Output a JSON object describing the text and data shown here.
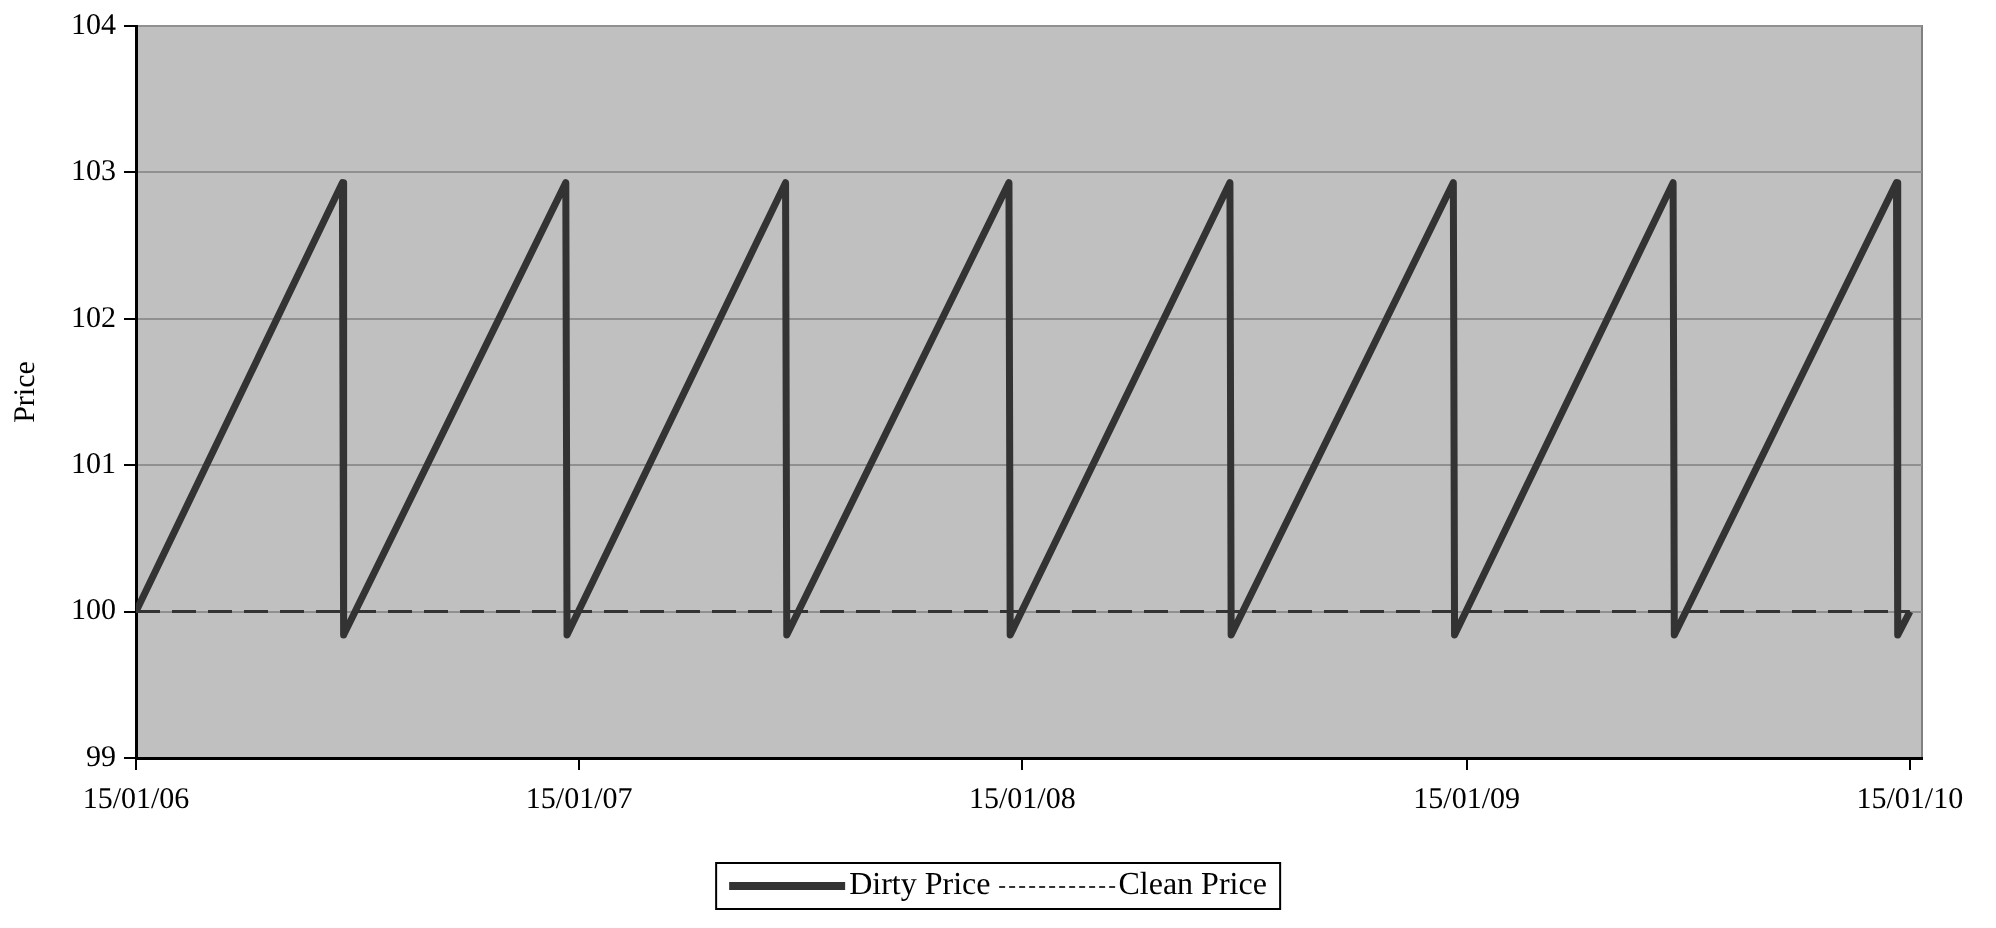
{
  "chart_data": {
    "type": "line",
    "ylabel": "Price",
    "xlim": [
      "2006-01-15",
      "2010-01-25"
    ],
    "xticks": [
      {
        "value": "2006-01-15",
        "label": "15/01/06"
      },
      {
        "value": "2007-01-15",
        "label": "15/01/07"
      },
      {
        "value": "2008-01-15",
        "label": "15/01/08"
      },
      {
        "value": "2009-01-15",
        "label": "15/01/09"
      },
      {
        "value": "2010-01-15",
        "label": "15/01/10"
      }
    ],
    "ylim": [
      99,
      104
    ],
    "yticks": [
      99,
      100,
      101,
      102,
      103,
      104
    ],
    "grid": "y",
    "legend": "bottom",
    "marker": "none",
    "series": [
      {
        "name": "Dirty Price",
        "color": "#333333",
        "line_style": "solid",
        "x": [
          "2006-01-15",
          "2006-07-04",
          "2006-07-05",
          "2007-01-04",
          "2007-01-05",
          "2007-07-04",
          "2007-07-05",
          "2008-01-04",
          "2008-01-05",
          "2008-07-04",
          "2008-07-05",
          "2009-01-04",
          "2009-01-05",
          "2009-07-04",
          "2009-07-05",
          "2010-01-04",
          "2010-01-05",
          "2010-01-15"
        ],
        "values": [
          100,
          102.93,
          99.84,
          102.93,
          99.84,
          102.93,
          99.84,
          102.93,
          99.84,
          102.93,
          99.84,
          102.93,
          99.84,
          102.93,
          99.84,
          102.93,
          99.84,
          100
        ]
      },
      {
        "name": "Clean Price",
        "color": "#333333",
        "line_style": "dashed",
        "x": [
          "2006-01-15",
          "2010-01-15"
        ],
        "values": [
          100,
          100
        ]
      }
    ]
  }
}
